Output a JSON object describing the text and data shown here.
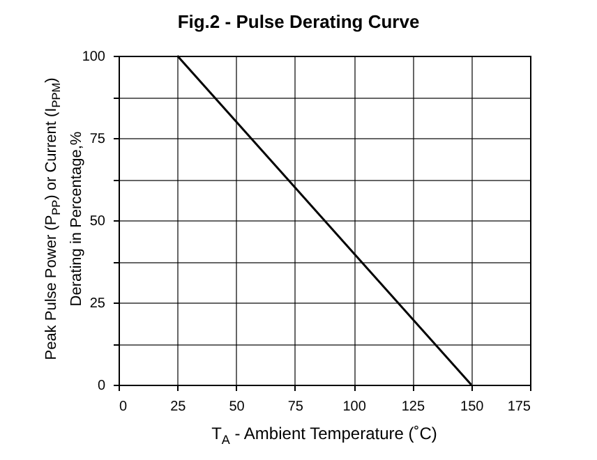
{
  "chart_data": {
    "type": "line",
    "title": "Fig.2 - Pulse Derating Curve",
    "xlabel": "T$_{A}$ - Ambient Temperature (˚C)",
    "ylabel": "Peak Pulse Power (P$_{PP}$) or Current (I$_{PPM}$)\nDerating in Percentage,%",
    "series": [
      {
        "x": [
          25,
          150
        ],
        "values": [
          100,
          0
        ],
        "color": "#000000"
      }
    ],
    "xlim": [
      0,
      175
    ],
    "xticks": [
      0,
      25,
      50,
      75,
      100,
      125,
      150,
      175
    ],
    "ylim": [
      0,
      100
    ],
    "yticks": [
      0,
      {
        "value": 12.5,
        "label": null
      },
      25,
      {
        "value": 37.5,
        "label": null
      },
      50,
      {
        "value": 62.5,
        "label": null
      },
      75,
      {
        "value": 87.5,
        "label": null
      },
      100
    ],
    "grid": true,
    "marker": "none",
    "line_style": "solid"
  }
}
